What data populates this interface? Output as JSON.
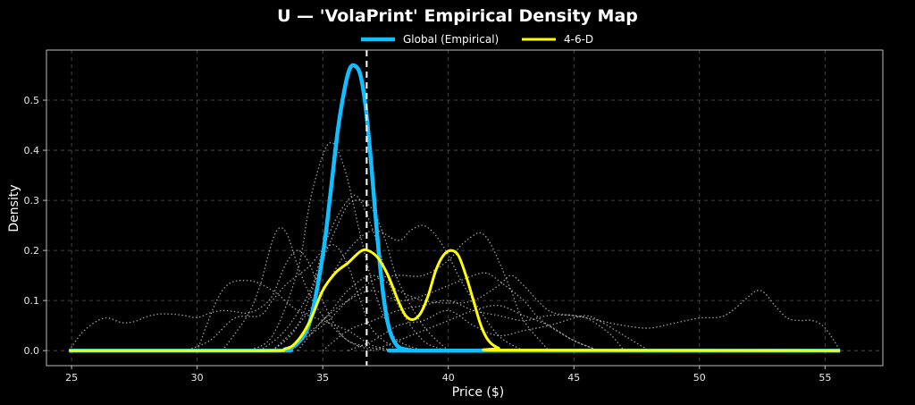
{
  "chart_data": {
    "type": "line",
    "title": "U — 'VolaPrint' Empirical Density Map",
    "xlabel": "Price ($)",
    "ylabel": "Density",
    "xlim": [
      24,
      57.3
    ],
    "ylim": [
      -0.03,
      0.6
    ],
    "xticks": [
      25,
      30,
      35,
      40,
      45,
      50,
      55
    ],
    "yticks": [
      0.0,
      0.1,
      0.2,
      0.3,
      0.4,
      0.5
    ],
    "grid": true,
    "legend_position": "top-center",
    "vline_x": 36.75,
    "colors": {
      "background": "#000000",
      "global": "#0fbfff",
      "highlight": "#ffff00",
      "background_lines": "#cfcfcf",
      "grid": "#555555",
      "vline": "#ffffff"
    },
    "legend": [
      {
        "label": "Global (Empirical)",
        "color": "#0fbfff"
      },
      {
        "label": "4-6-D",
        "color": "#ffff00"
      }
    ],
    "series": [
      {
        "name": "Global (Empirical)",
        "role": "primary",
        "x": [
          24.9,
          33.0,
          33.5,
          34.0,
          34.5,
          35.0,
          35.3,
          35.6,
          35.9,
          36.1,
          36.3,
          36.5,
          36.7,
          36.9,
          37.1,
          37.3,
          37.5,
          37.7,
          38.0,
          38.5,
          39.0,
          55.6
        ],
        "y": [
          0,
          0,
          0.003,
          0.015,
          0.06,
          0.19,
          0.31,
          0.44,
          0.53,
          0.565,
          0.568,
          0.55,
          0.49,
          0.39,
          0.27,
          0.16,
          0.08,
          0.035,
          0.008,
          0.001,
          0,
          0
        ]
      },
      {
        "name": "4-6-D",
        "role": "highlight",
        "x": [
          24.9,
          32.5,
          33.5,
          34.0,
          34.5,
          35.0,
          35.5,
          36.0,
          36.5,
          36.8,
          37.2,
          37.6,
          38.0,
          38.3,
          38.6,
          38.9,
          39.2,
          39.5,
          39.8,
          40.1,
          40.4,
          40.7,
          41.0,
          41.3,
          41.6,
          42.0,
          42.5,
          55.6
        ],
        "y": [
          0,
          0,
          0.003,
          0.02,
          0.06,
          0.12,
          0.155,
          0.175,
          0.198,
          0.2,
          0.185,
          0.15,
          0.1,
          0.07,
          0.062,
          0.075,
          0.11,
          0.16,
          0.19,
          0.2,
          0.19,
          0.15,
          0.1,
          0.05,
          0.02,
          0.005,
          0.001,
          0
        ]
      },
      {
        "role": "background",
        "x": [
          24.9,
          25.5,
          26.3,
          27,
          27.5,
          28,
          28.5,
          29,
          29.5,
          30,
          30.5,
          31,
          31.5,
          32,
          32.5,
          33,
          33.5,
          34,
          34.5,
          35,
          35.5,
          36,
          37,
          38,
          40
        ],
        "y": [
          0,
          0.04,
          0.065,
          0.056,
          0.058,
          0.068,
          0.073,
          0.073,
          0.07,
          0.066,
          0.075,
          0.08,
          0.078,
          0.075,
          0.085,
          0.11,
          0.17,
          0.2,
          0.17,
          0.1,
          0.05,
          0.02,
          0.005,
          0,
          0
        ]
      },
      {
        "role": "background",
        "x": [
          29.5,
          30.5,
          31.5,
          32.5,
          33,
          33.5,
          34,
          34.5,
          35,
          35.5,
          36,
          36.5,
          37,
          38
        ],
        "y": [
          0,
          0.02,
          0.065,
          0.07,
          0.1,
          0.13,
          0.15,
          0.17,
          0.2,
          0.21,
          0.17,
          0.1,
          0.04,
          0
        ]
      },
      {
        "role": "background",
        "x": [
          30,
          31,
          32,
          33,
          34,
          35,
          36,
          37,
          38
        ],
        "y": [
          0,
          0.12,
          0.14,
          0.12,
          0.08,
          0.06,
          0.04,
          0.01,
          0
        ]
      },
      {
        "role": "background",
        "x": [
          31,
          32,
          32.5,
          33,
          33.3,
          33.6,
          34,
          34.5,
          35,
          36,
          37
        ],
        "y": [
          0,
          0.07,
          0.13,
          0.22,
          0.245,
          0.23,
          0.17,
          0.11,
          0.07,
          0.02,
          0
        ]
      },
      {
        "role": "background",
        "x": [
          32,
          33,
          34,
          34.5,
          35,
          35.3,
          35.6,
          36,
          36.5,
          37,
          37.5,
          38,
          39
        ],
        "y": [
          0,
          0.03,
          0.16,
          0.3,
          0.39,
          0.415,
          0.4,
          0.34,
          0.23,
          0.13,
          0.06,
          0.02,
          0
        ]
      },
      {
        "role": "background",
        "x": [
          32.5,
          33.5,
          34.5,
          35,
          35.5,
          36,
          36.3,
          36.6,
          37,
          37.5,
          38,
          39,
          40
        ],
        "y": [
          0,
          0.04,
          0.12,
          0.2,
          0.26,
          0.3,
          0.31,
          0.29,
          0.24,
          0.16,
          0.09,
          0.02,
          0
        ]
      },
      {
        "role": "background",
        "x": [
          33,
          34,
          35,
          35.5,
          36,
          36.5,
          37,
          37.5,
          38,
          39,
          40
        ],
        "y": [
          0,
          0.05,
          0.18,
          0.24,
          0.29,
          0.3,
          0.28,
          0.22,
          0.14,
          0.05,
          0
        ]
      },
      {
        "role": "background",
        "x": [
          33,
          34,
          35,
          36,
          37,
          38,
          38.5,
          39,
          39.5,
          40,
          40.5,
          41,
          42,
          43
        ],
        "y": [
          0,
          0.05,
          0.12,
          0.2,
          0.24,
          0.22,
          0.24,
          0.25,
          0.23,
          0.19,
          0.14,
          0.1,
          0.03,
          0
        ]
      },
      {
        "role": "background",
        "x": [
          33.5,
          35,
          36,
          37,
          38,
          39,
          40,
          40.5,
          41,
          41.3,
          41.6,
          42,
          42.5,
          43,
          44
        ],
        "y": [
          0,
          0.05,
          0.1,
          0.14,
          0.15,
          0.15,
          0.18,
          0.21,
          0.23,
          0.235,
          0.22,
          0.18,
          0.12,
          0.06,
          0
        ]
      },
      {
        "role": "background",
        "x": [
          33.5,
          35,
          36,
          37,
          38,
          39,
          40,
          41,
          42,
          42.5,
          43,
          44,
          45,
          45.5,
          46,
          46.5,
          47
        ],
        "y": [
          0,
          0.06,
          0.12,
          0.15,
          0.12,
          0.1,
          0.095,
          0.1,
          0.13,
          0.15,
          0.13,
          0.08,
          0.07,
          0.065,
          0.05,
          0.03,
          0
        ]
      },
      {
        "role": "background",
        "x": [
          34,
          35,
          36,
          37,
          38,
          39,
          40,
          41,
          41.5,
          42,
          43,
          43.5,
          44,
          45,
          46
        ],
        "y": [
          0,
          0.06,
          0.1,
          0.12,
          0.1,
          0.11,
          0.13,
          0.15,
          0.155,
          0.14,
          0.1,
          0.07,
          0.05,
          0.02,
          0
        ]
      },
      {
        "role": "background",
        "x": [
          35,
          36,
          37,
          38,
          39,
          40,
          41,
          42,
          43,
          44,
          45,
          46,
          47,
          48,
          49,
          50,
          51,
          52,
          52.3,
          52.6,
          53,
          53.5,
          54,
          54.5,
          55,
          55.6
        ],
        "y": [
          0,
          0.04,
          0.06,
          0.08,
          0.09,
          0.1,
          0.08,
          0.07,
          0.06,
          0.07,
          0.07,
          0.06,
          0.05,
          0.045,
          0.055,
          0.065,
          0.07,
          0.11,
          0.12,
          0.115,
          0.09,
          0.065,
          0.06,
          0.06,
          0.045,
          0
        ]
      },
      {
        "role": "background",
        "x": [
          36,
          37,
          38,
          39,
          40,
          41,
          42,
          43,
          44,
          45,
          45.5,
          46,
          47,
          48
        ],
        "y": [
          0,
          0.02,
          0.05,
          0.06,
          0.08,
          0.05,
          0.03,
          0.04,
          0.05,
          0.065,
          0.07,
          0.06,
          0.03,
          0
        ]
      },
      {
        "role": "background",
        "x": [
          37,
          38,
          39,
          40,
          41,
          42,
          43,
          44,
          45,
          46
        ],
        "y": [
          0,
          0.02,
          0.04,
          0.06,
          0.08,
          0.09,
          0.07,
          0.05,
          0.02,
          0
        ]
      }
    ]
  }
}
